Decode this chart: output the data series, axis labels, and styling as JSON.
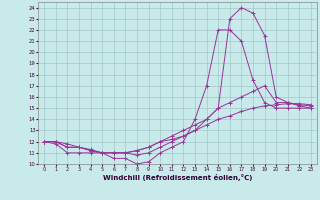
{
  "xlabel": "Windchill (Refroidissement éolien,°C)",
  "background_color": "#c8eaea",
  "grid_color": "#a0c8c8",
  "line_color": "#993399",
  "xlim": [
    -0.5,
    23.5
  ],
  "ylim": [
    10,
    24.5
  ],
  "xticks": [
    0,
    1,
    2,
    3,
    4,
    5,
    6,
    7,
    8,
    9,
    10,
    11,
    12,
    13,
    14,
    15,
    16,
    17,
    18,
    19,
    20,
    21,
    22,
    23
  ],
  "yticks": [
    10,
    11,
    12,
    13,
    14,
    15,
    16,
    17,
    18,
    19,
    20,
    21,
    22,
    23,
    24
  ],
  "series": [
    {
      "x": [
        0,
        1,
        2,
        3,
        4,
        5,
        6,
        7,
        8,
        9,
        10,
        11,
        12,
        13,
        14,
        15,
        16,
        17,
        18,
        19,
        20,
        21,
        22,
        23
      ],
      "y": [
        12,
        11.8,
        11,
        11,
        11,
        11,
        10.5,
        10.5,
        10,
        10.2,
        11,
        11.5,
        12,
        14,
        17,
        22,
        22,
        21,
        17.5,
        15.5,
        15,
        15,
        15,
        15
      ]
    },
    {
      "x": [
        0,
        1,
        2,
        3,
        4,
        5,
        6,
        7,
        8,
        9,
        10,
        11,
        12,
        13,
        14,
        15,
        16,
        17,
        18,
        19,
        20,
        21,
        22,
        23
      ],
      "y": [
        12,
        12,
        11.5,
        11.5,
        11.2,
        11,
        11,
        11,
        11.2,
        11.5,
        12,
        12.5,
        13,
        13.5,
        14,
        15,
        15.5,
        16,
        16.5,
        17,
        15.5,
        15.5,
        15.3,
        15.2
      ]
    },
    {
      "x": [
        0,
        1,
        2,
        3,
        4,
        5,
        6,
        7,
        8,
        9,
        10,
        11,
        12,
        13,
        14,
        15,
        16,
        17,
        18,
        19,
        20,
        21,
        22,
        23
      ],
      "y": [
        12,
        12,
        11.5,
        11.5,
        11.2,
        11,
        11,
        11,
        11.2,
        11.5,
        12,
        12.2,
        12.5,
        13,
        13.5,
        14,
        14.3,
        14.7,
        15,
        15.2,
        15.3,
        15.4,
        15.4,
        15.3
      ]
    },
    {
      "x": [
        0,
        1,
        2,
        3,
        4,
        5,
        6,
        7,
        8,
        9,
        10,
        11,
        12,
        13,
        14,
        15,
        16,
        17,
        18,
        19,
        20,
        21,
        22,
        23
      ],
      "y": [
        12,
        12,
        11.8,
        11.5,
        11.3,
        11,
        11,
        11,
        10.8,
        11,
        11.5,
        12,
        12.5,
        13,
        14,
        15,
        23,
        24,
        23.5,
        21.5,
        16,
        15.5,
        15.2,
        15
      ]
    }
  ]
}
